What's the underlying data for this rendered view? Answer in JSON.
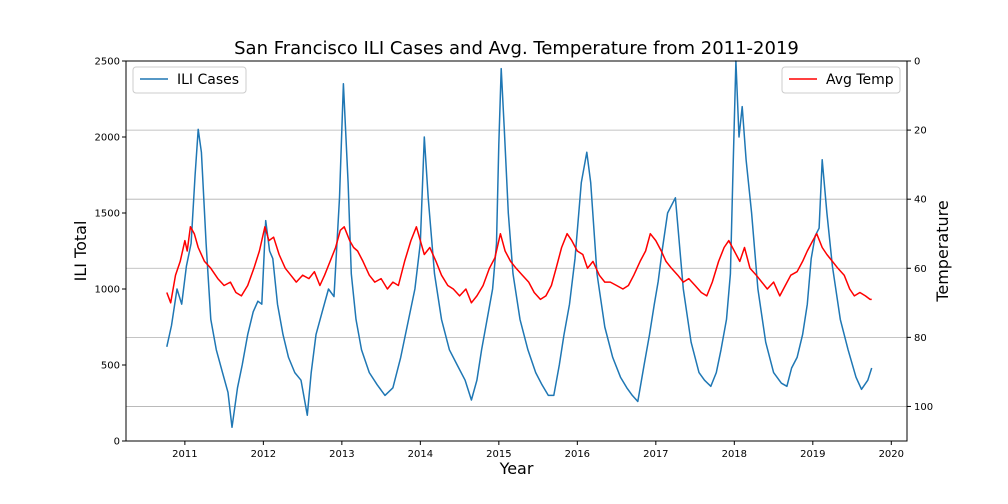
{
  "chart_data": {
    "type": "line",
    "title": "San Francisco ILI Cases and Avg. Temperature from 2011-2019",
    "xlabel": "Year",
    "ylabel": "ILI Total",
    "ylabel_right": "Temperature",
    "xlim": [
      2010.25,
      2020.2
    ],
    "ylim": [
      0,
      2500
    ],
    "ylim_right": [
      110,
      0
    ],
    "right_axis_inverted": true,
    "x_ticks": [
      "2011",
      "2012",
      "2013",
      "2014",
      "2015",
      "2016",
      "2017",
      "2018",
      "2019",
      "2020"
    ],
    "y_ticks": [
      "0",
      "500",
      "1000",
      "1500",
      "2000",
      "2500"
    ],
    "y_ticks_right": [
      "0",
      "20",
      "40",
      "60",
      "80",
      "100"
    ],
    "grid": "horizontal lines at right-axis ticks",
    "series": [
      {
        "name": "ILI Cases",
        "axis": "left",
        "color": "#1f77b4",
        "legend_position": "upper-left",
        "x": [
          2010.77,
          2010.83,
          2010.9,
          2010.96,
          2011.02,
          2011.08,
          2011.13,
          2011.17,
          2011.21,
          2011.27,
          2011.33,
          2011.4,
          2011.48,
          2011.55,
          2011.6,
          2011.67,
          2011.73,
          2011.8,
          2011.87,
          2011.93,
          2011.98,
          2012.03,
          2012.08,
          2012.12,
          2012.18,
          2012.25,
          2012.32,
          2012.4,
          2012.48,
          2012.56,
          2012.61,
          2012.67,
          2012.75,
          2012.83,
          2012.9,
          2012.97,
          2013.02,
          2013.08,
          2013.12,
          2013.18,
          2013.25,
          2013.35,
          2013.45,
          2013.55,
          2013.65,
          2013.75,
          2013.85,
          2013.93,
          2014.0,
          2014.05,
          2014.1,
          2014.18,
          2014.27,
          2014.37,
          2014.47,
          2014.57,
          2014.65,
          2014.72,
          2014.78,
          2014.85,
          2014.92,
          2014.97,
          2015.0,
          2015.03,
          2015.07,
          2015.12,
          2015.18,
          2015.27,
          2015.37,
          2015.47,
          2015.55,
          2015.63,
          2015.7,
          2015.77,
          2015.83,
          2015.9,
          2015.97,
          2016.05,
          2016.12,
          2016.17,
          2016.25,
          2016.35,
          2016.45,
          2016.55,
          2016.63,
          2016.7,
          2016.77,
          2016.85,
          2016.92,
          2016.98,
          2017.03,
          2017.08,
          2017.15,
          2017.25,
          2017.35,
          2017.45,
          2017.55,
          2017.62,
          2017.7,
          2017.77,
          2017.83,
          2017.9,
          2017.95,
          2017.98,
          2018.02,
          2018.06,
          2018.1,
          2018.15,
          2018.22,
          2018.3,
          2018.4,
          2018.5,
          2018.6,
          2018.67,
          2018.73,
          2018.8,
          2018.87,
          2018.93,
          2018.98,
          2019.03,
          2019.08,
          2019.12,
          2019.18,
          2019.25,
          2019.35,
          2019.45,
          2019.55,
          2019.62,
          2019.7,
          2019.75
        ],
        "y": [
          620,
          760,
          1000,
          900,
          1150,
          1300,
          1750,
          2050,
          1900,
          1300,
          800,
          600,
          450,
          320,
          90,
          350,
          500,
          700,
          850,
          920,
          900,
          1450,
          1250,
          1200,
          900,
          700,
          550,
          450,
          400,
          170,
          450,
          700,
          850,
          1000,
          950,
          1600,
          2350,
          1700,
          1100,
          800,
          600,
          450,
          370,
          300,
          350,
          550,
          800,
          1000,
          1300,
          2000,
          1600,
          1100,
          800,
          600,
          500,
          400,
          270,
          400,
          600,
          800,
          1000,
          1300,
          1950,
          2450,
          2050,
          1500,
          1100,
          800,
          600,
          450,
          370,
          300,
          300,
          500,
          700,
          900,
          1200,
          1700,
          1900,
          1700,
          1100,
          750,
          550,
          420,
          350,
          300,
          260,
          500,
          700,
          900,
          1050,
          1250,
          1500,
          1600,
          1000,
          650,
          450,
          400,
          360,
          450,
          600,
          800,
          1100,
          1700,
          2500,
          2000,
          2200,
          1850,
          1500,
          1000,
          650,
          450,
          380,
          360,
          480,
          550,
          700,
          900,
          1200,
          1350,
          1400,
          1850,
          1500,
          1150,
          800,
          600,
          420,
          340,
          400,
          480
        ]
      },
      {
        "name": "Avg Temp",
        "axis": "right",
        "color": "#ff0000",
        "legend_position": "upper-right",
        "x": [
          2010.77,
          2010.82,
          2010.88,
          2010.94,
          2011.0,
          2011.03,
          2011.07,
          2011.12,
          2011.17,
          2011.25,
          2011.33,
          2011.42,
          2011.5,
          2011.58,
          2011.65,
          2011.72,
          2011.8,
          2011.88,
          2011.95,
          2012.02,
          2012.07,
          2012.13,
          2012.2,
          2012.28,
          2012.35,
          2012.42,
          2012.5,
          2012.58,
          2012.65,
          2012.72,
          2012.78,
          2012.85,
          2012.92,
          2012.98,
          2013.03,
          2013.1,
          2013.15,
          2013.2,
          2013.27,
          2013.35,
          2013.42,
          2013.5,
          2013.58,
          2013.65,
          2013.72,
          2013.8,
          2013.88,
          2013.95,
          2014.0,
          2014.05,
          2014.12,
          2014.2,
          2014.27,
          2014.35,
          2014.42,
          2014.5,
          2014.58,
          2014.65,
          2014.72,
          2014.8,
          2014.88,
          2014.95,
          2015.02,
          2015.08,
          2015.15,
          2015.22,
          2015.3,
          2015.38,
          2015.45,
          2015.53,
          2015.6,
          2015.67,
          2015.73,
          2015.8,
          2015.87,
          2015.93,
          2016.0,
          2016.07,
          2016.13,
          2016.2,
          2016.28,
          2016.35,
          2016.42,
          2016.5,
          2016.58,
          2016.65,
          2016.72,
          2016.8,
          2016.87,
          2016.93,
          2017.0,
          2017.07,
          2017.13,
          2017.2,
          2017.28,
          2017.35,
          2017.42,
          2017.5,
          2017.58,
          2017.65,
          2017.72,
          2017.8,
          2017.87,
          2017.93,
          2018.0,
          2018.07,
          2018.13,
          2018.2,
          2018.28,
          2018.35,
          2018.42,
          2018.5,
          2018.58,
          2018.65,
          2018.72,
          2018.8,
          2018.87,
          2018.93,
          2019.0,
          2019.05,
          2019.12,
          2019.18,
          2019.25,
          2019.32,
          2019.4,
          2019.47,
          2019.53,
          2019.6,
          2019.67,
          2019.73,
          2019.75
        ],
        "y": [
          67,
          70,
          62,
          58,
          52,
          55,
          48,
          50,
          54,
          58,
          60,
          63,
          65,
          64,
          67,
          68,
          65,
          60,
          55,
          48,
          52,
          51,
          56,
          60,
          62,
          64,
          62,
          63,
          61,
          65,
          62,
          58,
          54,
          49,
          48,
          52,
          54,
          55,
          58,
          62,
          64,
          63,
          66,
          64,
          65,
          58,
          52,
          48,
          52,
          56,
          54,
          58,
          62,
          65,
          66,
          68,
          66,
          70,
          68,
          65,
          60,
          57,
          50,
          55,
          58,
          60,
          62,
          64,
          67,
          69,
          68,
          65,
          60,
          54,
          50,
          52,
          55,
          56,
          60,
          58,
          62,
          64,
          64,
          65,
          66,
          65,
          62,
          58,
          55,
          50,
          52,
          55,
          58,
          60,
          62,
          64,
          63,
          65,
          67,
          68,
          64,
          58,
          54,
          52,
          55,
          58,
          54,
          60,
          62,
          64,
          66,
          64,
          68,
          65,
          62,
          61,
          58,
          55,
          52,
          50,
          54,
          56,
          58,
          60,
          62,
          66,
          68,
          67,
          68,
          69,
          69
        ]
      }
    ]
  }
}
